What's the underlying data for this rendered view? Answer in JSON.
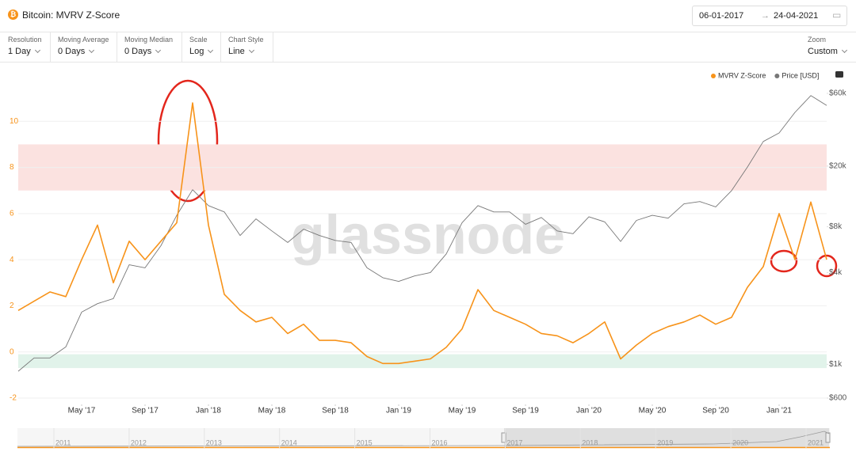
{
  "header": {
    "title": "Bitcoin: MVRV Z-Score",
    "date_from": "06-01-2017",
    "date_to": "24-04-2021"
  },
  "controls": [
    {
      "label": "Resolution",
      "value": "1 Day"
    },
    {
      "label": "Moving Average",
      "value": "0 Days"
    },
    {
      "label": "Moving Median",
      "value": "0 Days"
    },
    {
      "label": "Scale",
      "value": "Log"
    },
    {
      "label": "Chart Style",
      "value": "Line"
    }
  ],
  "zoom": {
    "label": "Zoom",
    "value": "Custom"
  },
  "watermark": "glassnode",
  "navigator": {
    "years": [
      "2011",
      "2012",
      "2013",
      "2014",
      "2015",
      "2016",
      "2017",
      "2018",
      "2019",
      "2020",
      "2021"
    ]
  },
  "chart_data": {
    "type": "line",
    "legend": "top-right",
    "grid": true,
    "y2_log": true,
    "x": [
      "2017-01",
      "2017-02",
      "2017-03",
      "2017-04",
      "2017-05",
      "2017-06",
      "2017-07",
      "2017-08",
      "2017-09",
      "2017-10",
      "2017-11",
      "2017-12",
      "2018-01",
      "2018-02",
      "2018-03",
      "2018-04",
      "2018-05",
      "2018-06",
      "2018-07",
      "2018-08",
      "2018-09",
      "2018-10",
      "2018-11",
      "2018-12",
      "2019-01",
      "2019-02",
      "2019-03",
      "2019-04",
      "2019-05",
      "2019-06",
      "2019-07",
      "2019-08",
      "2019-09",
      "2019-10",
      "2019-11",
      "2019-12",
      "2020-01",
      "2020-02",
      "2020-03",
      "2020-04",
      "2020-05",
      "2020-06",
      "2020-07",
      "2020-08",
      "2020-09",
      "2020-10",
      "2020-11",
      "2020-12",
      "2021-01",
      "2021-02",
      "2021-03",
      "2021-04"
    ],
    "xlim": [
      "2017-01",
      "2021-04"
    ],
    "xticks": [
      {
        "value": "2017-05",
        "label": "May '17"
      },
      {
        "value": "2017-09",
        "label": "Sep '17"
      },
      {
        "value": "2018-01",
        "label": "Jan '18"
      },
      {
        "value": "2018-05",
        "label": "May '18"
      },
      {
        "value": "2018-09",
        "label": "Sep '18"
      },
      {
        "value": "2019-01",
        "label": "Jan '19"
      },
      {
        "value": "2019-05",
        "label": "May '19"
      },
      {
        "value": "2019-09",
        "label": "Sep '19"
      },
      {
        "value": "2020-01",
        "label": "Jan '20"
      },
      {
        "value": "2020-05",
        "label": "May '20"
      },
      {
        "value": "2020-09",
        "label": "Sep '20"
      },
      {
        "value": "2021-01",
        "label": "Jan '21"
      }
    ],
    "ylim": [
      -2,
      12
    ],
    "yticks": [
      -2,
      0,
      2,
      4,
      6,
      8,
      10
    ],
    "y2lim": [
      600,
      79000
    ],
    "y2ticks": [
      {
        "value": 600,
        "label": "$600"
      },
      {
        "value": 1000,
        "label": "$1k"
      },
      {
        "value": 4000,
        "label": "$4k"
      },
      {
        "value": 8000,
        "label": "$8k"
      },
      {
        "value": 20000,
        "label": "$20k"
      },
      {
        "value": 60000,
        "label": "$60k"
      }
    ],
    "bands": [
      {
        "range": [
          7,
          9
        ],
        "color": "#fbe2e0"
      },
      {
        "range": [
          -0.7,
          -0.1
        ],
        "color": "#e1f3ea"
      }
    ],
    "series": [
      {
        "name": "MVRV Z-Score",
        "color": "#f7931a",
        "values": [
          1.8,
          2.2,
          2.6,
          2.4,
          4.0,
          5.5,
          3.0,
          4.8,
          4.0,
          4.8,
          5.6,
          10.8,
          5.5,
          2.5,
          1.8,
          1.3,
          1.5,
          0.8,
          1.2,
          0.5,
          0.5,
          0.4,
          -0.2,
          -0.5,
          -0.5,
          -0.4,
          -0.3,
          0.2,
          1.0,
          2.7,
          1.8,
          1.5,
          1.2,
          0.8,
          0.7,
          0.4,
          0.8,
          1.3,
          -0.3,
          0.3,
          0.8,
          1.1,
          1.3,
          1.6,
          1.2,
          1.5,
          2.8,
          3.7,
          6.0,
          4.0,
          6.5,
          4.0
        ]
      },
      {
        "name": "Price [USD]",
        "color": "#777777",
        "axis": "y2",
        "values": [
          900,
          1100,
          1100,
          1300,
          2200,
          2500,
          2700,
          4500,
          4300,
          6000,
          9500,
          14000,
          11000,
          10000,
          7000,
          9000,
          7500,
          6300,
          7700,
          7000,
          6500,
          6300,
          4300,
          3700,
          3500,
          3800,
          4000,
          5300,
          8500,
          11000,
          10000,
          10000,
          8300,
          9200,
          7500,
          7200,
          9300,
          8600,
          6400,
          8800,
          9500,
          9100,
          11300,
          11700,
          10800,
          13800,
          19700,
          29000,
          33000,
          45000,
          58000,
          50000
        ]
      }
    ]
  }
}
